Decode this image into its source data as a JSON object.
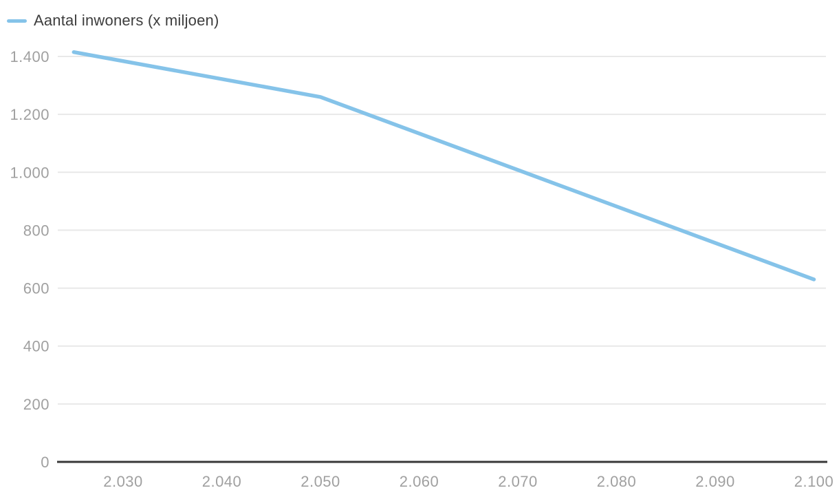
{
  "legend": {
    "label": "Aantal inwoners (x miljoen)",
    "swatch_color": "#85c3e9"
  },
  "chart_data": {
    "type": "line",
    "title": "",
    "xlabel": "",
    "ylabel": "",
    "legend_position": "top-left",
    "grid": "horizontal",
    "series": [
      {
        "name": "Aantal inwoners (x miljoen)",
        "x": [
          2025,
          2050,
          2100
        ],
        "values": [
          1415,
          1260,
          630
        ]
      }
    ],
    "x_ticks": [
      {
        "value": 2030,
        "label": "2.030"
      },
      {
        "value": 2040,
        "label": "2.040"
      },
      {
        "value": 2050,
        "label": "2.050"
      },
      {
        "value": 2060,
        "label": "2.060"
      },
      {
        "value": 2070,
        "label": "2.070"
      },
      {
        "value": 2080,
        "label": "2.080"
      },
      {
        "value": 2090,
        "label": "2.090"
      },
      {
        "value": 2100,
        "label": "2.100"
      }
    ],
    "y_ticks": [
      {
        "value": 0,
        "label": "0"
      },
      {
        "value": 200,
        "label": "200"
      },
      {
        "value": 400,
        "label": "400"
      },
      {
        "value": 600,
        "label": "600"
      },
      {
        "value": 800,
        "label": "800"
      },
      {
        "value": 1000,
        "label": "1.000"
      },
      {
        "value": 1200,
        "label": "1.200"
      },
      {
        "value": 1400,
        "label": "1.400"
      }
    ],
    "xlim": [
      2023.5,
      2101.5
    ],
    "ylim": [
      0,
      1450
    ],
    "colors": {
      "line": "#85c3e9",
      "grid": "#e8e8e8",
      "axis": "#383838",
      "tick_label": "#a0a0a0",
      "legend_text": "#3d3d3d"
    }
  }
}
